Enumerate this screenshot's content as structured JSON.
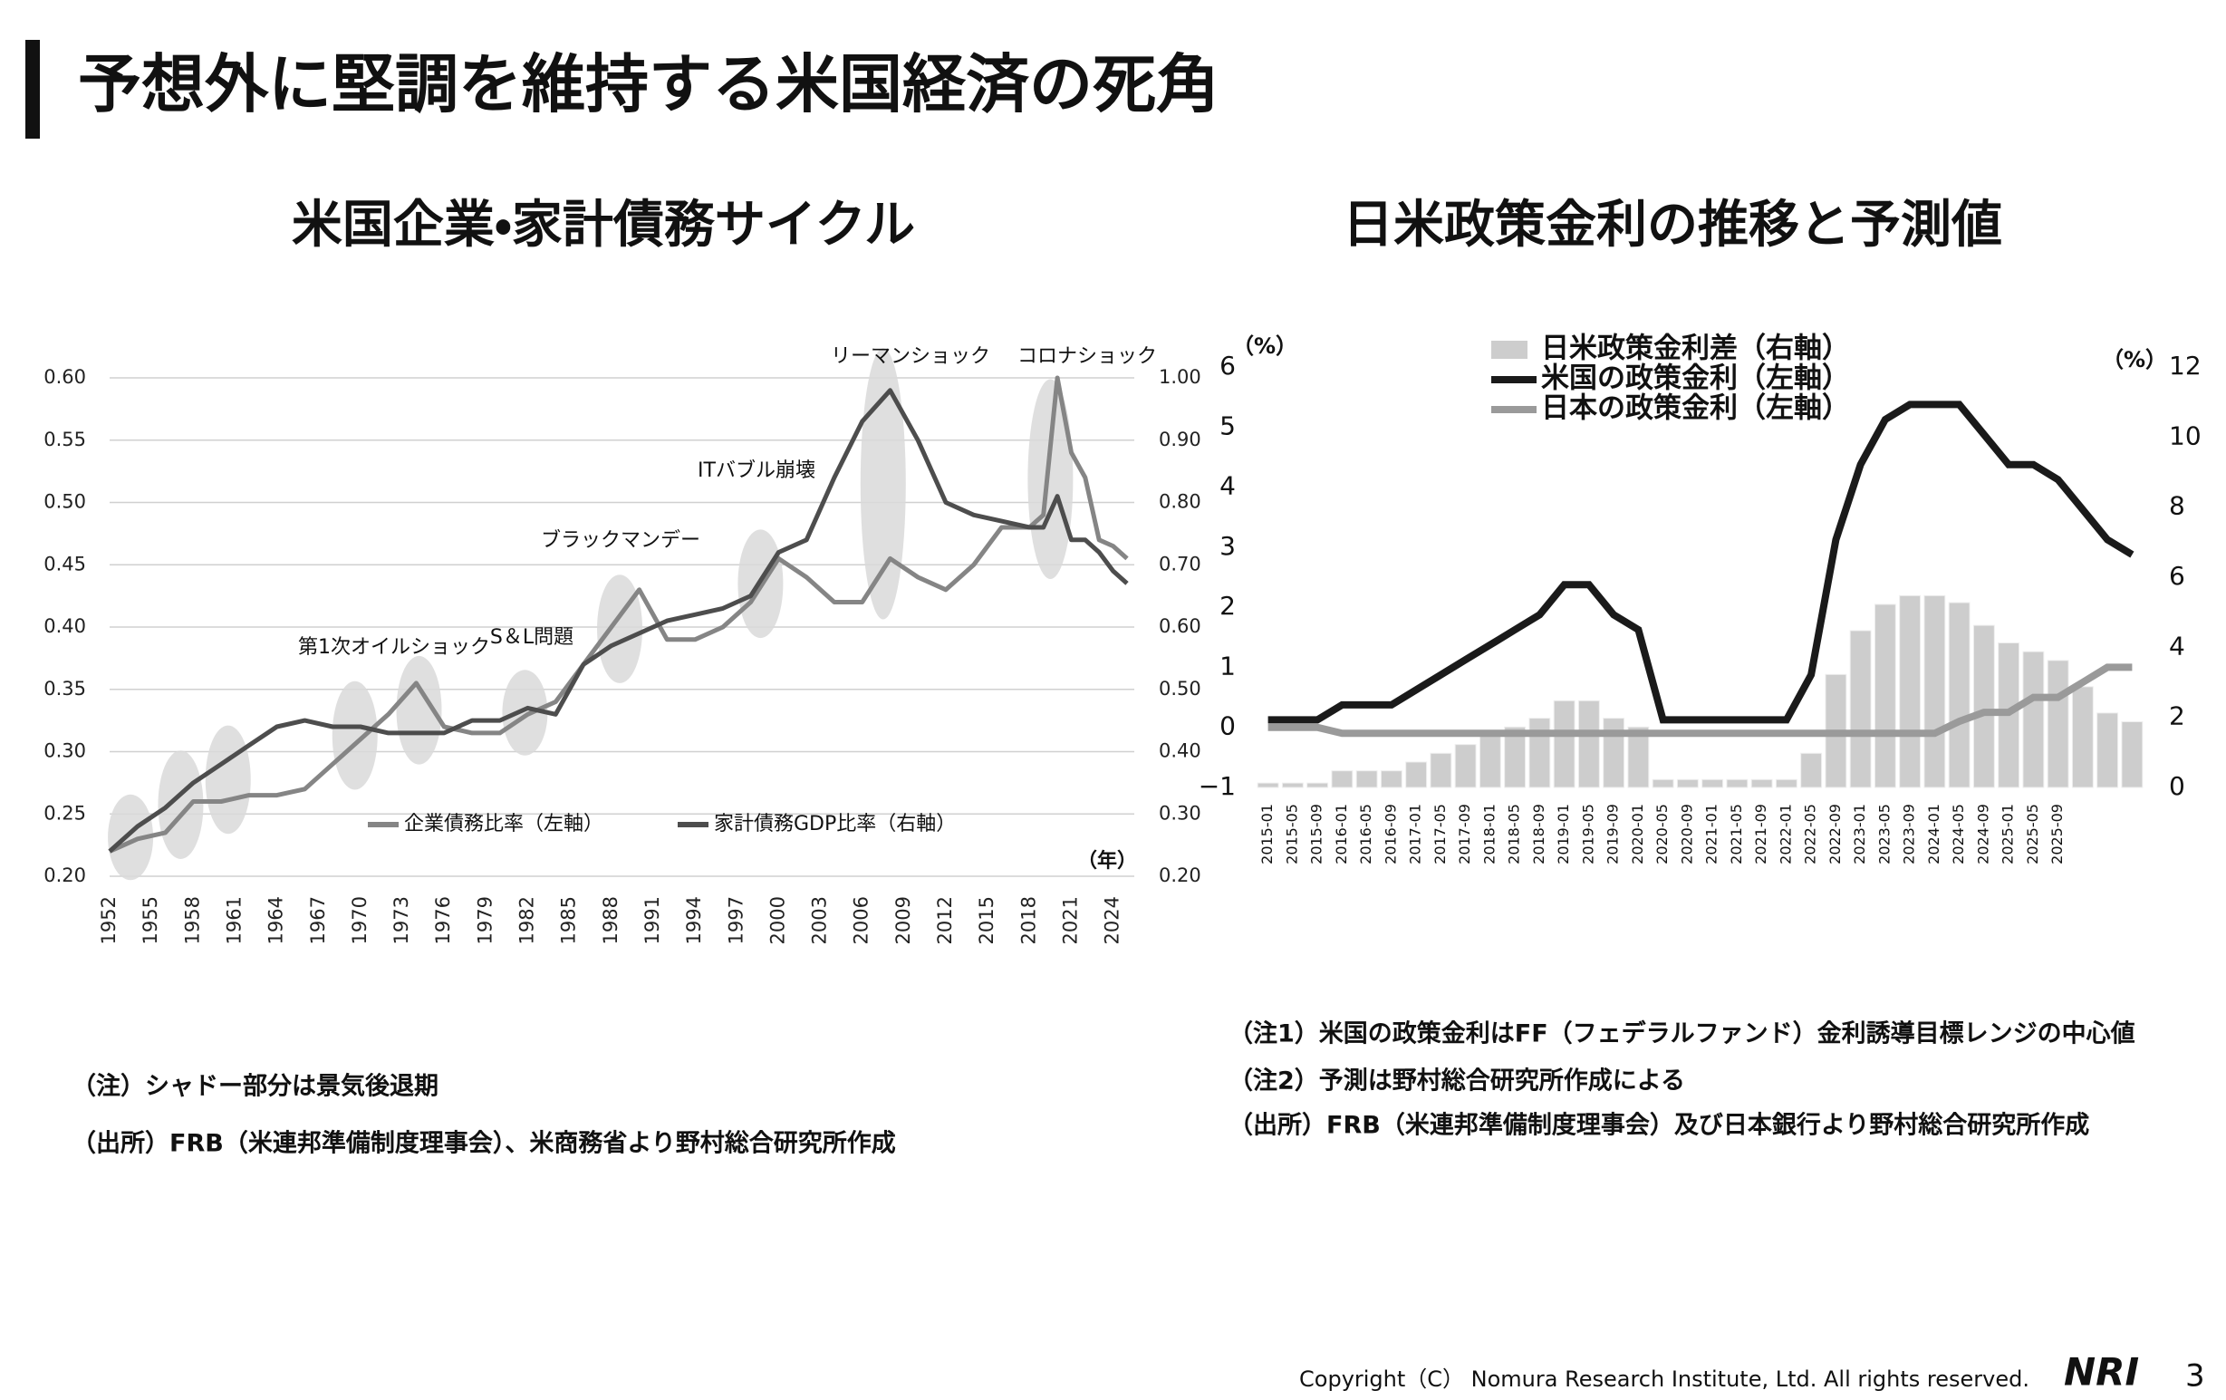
{
  "title": "予想外に堅調を維持する米国経済の死角",
  "chart_data": [
    {
      "type": "line",
      "title": "米国企業・家計債務サイクル",
      "x": [
        1952,
        1954,
        1956,
        1958,
        1960,
        1962,
        1964,
        1966,
        1968,
        1970,
        1972,
        1974,
        1976,
        1978,
        1980,
        1982,
        1984,
        1986,
        1988,
        1990,
        1992,
        1994,
        1996,
        1998,
        2000,
        2002,
        2004,
        2006,
        2008,
        2010,
        2012,
        2014,
        2016,
        2018,
        2019,
        2020,
        2021,
        2022,
        2023,
        2024,
        2025
      ],
      "series": [
        {
          "name": "企業債務比率（左軸）",
          "color": "#858585",
          "values": [
            0.22,
            0.23,
            0.235,
            0.26,
            0.26,
            0.265,
            0.265,
            0.27,
            0.29,
            0.31,
            0.33,
            0.355,
            0.32,
            0.315,
            0.315,
            0.33,
            0.34,
            0.37,
            0.4,
            0.43,
            0.39,
            0.39,
            0.4,
            0.42,
            0.455,
            0.44,
            0.42,
            0.42,
            0.455,
            0.44,
            0.43,
            0.45,
            0.48,
            0.48,
            0.49,
            0.6,
            0.54,
            0.52,
            0.47,
            0.465,
            0.455
          ]
        },
        {
          "name": "家計債務GDP比率（右軸）",
          "color": "#4d4d4d",
          "axis": "y2",
          "values": [
            0.24,
            0.28,
            0.31,
            0.35,
            0.38,
            0.41,
            0.44,
            0.45,
            0.44,
            0.44,
            0.43,
            0.43,
            0.43,
            0.45,
            0.45,
            0.47,
            0.46,
            0.54,
            0.57,
            0.59,
            0.61,
            0.62,
            0.63,
            0.65,
            0.72,
            0.74,
            0.84,
            0.93,
            0.98,
            0.9,
            0.8,
            0.78,
            0.77,
            0.76,
            0.76,
            0.81,
            0.74,
            0.74,
            0.72,
            0.69,
            0.67
          ]
        }
      ],
      "xlim": [
        1952,
        2025
      ],
      "xticks": [
        1952,
        1955,
        1958,
        1961,
        1964,
        1967,
        1970,
        1973,
        1976,
        1979,
        1982,
        1985,
        1988,
        1991,
        1994,
        1997,
        2000,
        2003,
        2006,
        2009,
        2012,
        2015,
        2018,
        2021,
        2024
      ],
      "x_unit": "（年）",
      "ylim": [
        0.2,
        0.6
      ],
      "yticks": [
        {
          "value": 0.2,
          "label": "0.20"
        },
        {
          "value": 0.25,
          "label": "0.25"
        },
        {
          "value": 0.3,
          "label": "0.30"
        },
        {
          "value": 0.35,
          "label": "0.35"
        },
        {
          "value": 0.4,
          "label": "0.40"
        },
        {
          "value": 0.45,
          "label": "0.45"
        },
        {
          "value": 0.5,
          "label": "0.50"
        },
        {
          "value": 0.55,
          "label": "0.55"
        },
        {
          "value": 0.6,
          "label": "0.60"
        }
      ],
      "y2lim": [
        0.2,
        1.0
      ],
      "y2ticks": [
        {
          "value": 0.2,
          "label": "0.20"
        },
        {
          "value": 0.3,
          "label": "0.30"
        },
        {
          "value": 0.4,
          "label": "0.40"
        },
        {
          "value": 0.5,
          "label": "0.50"
        },
        {
          "value": 0.6,
          "label": "0.60"
        },
        {
          "value": 0.7,
          "label": "0.70"
        },
        {
          "value": 0.8,
          "label": "0.80"
        },
        {
          "value": 0.9,
          "label": "0.90"
        },
        {
          "value": 1.0,
          "label": "1.00"
        }
      ],
      "grid": true,
      "shaded_periods": [
        1953.5,
        1957.1,
        1960.5,
        1969.6,
        1974.2,
        1981.8,
        1988.6,
        1998.7,
        2007.5,
        2019.5
      ],
      "annotations": [
        "リーマンショック",
        "コロナショック",
        "ITバブル崩壊",
        "ブラックマンデー",
        "第1次オイルショック",
        "S＆L問題"
      ]
    },
    {
      "type": "combo",
      "title": "日米政策金利の推移と予測値",
      "categories": [
        "2015-01",
        "2015-05",
        "2015-09",
        "2016-01",
        "2016-05",
        "2016-09",
        "2017-01",
        "2017-05",
        "2017-09",
        "2018-01",
        "2018-05",
        "2018-09",
        "2019-01",
        "2019-05",
        "2019-09",
        "2020-01",
        "2020-05",
        "2020-09",
        "2021-01",
        "2021-05",
        "2021-09",
        "2022-01",
        "2022-05",
        "2022-09",
        "2023-01",
        "2023-05",
        "2023-09",
        "2024-01",
        "2024-05",
        "2024-09",
        "2025-01",
        "2025-05",
        "2025-09",
        null,
        null,
        null
      ],
      "series": [
        {
          "name": "日米政策金利差（右軸）",
          "color": "#cdcdcd",
          "type": "bar",
          "axis": "y2",
          "values": [
            0.125,
            0.125,
            0.125,
            0.475,
            0.475,
            0.475,
            0.725,
            0.975,
            1.225,
            1.475,
            1.725,
            1.975,
            2.475,
            2.475,
            1.975,
            1.725,
            0.225,
            0.225,
            0.225,
            0.225,
            0.225,
            0.225,
            0.975,
            3.225,
            4.475,
            5.225,
            5.475,
            5.475,
            5.275,
            4.625,
            4.125,
            3.875,
            3.625,
            2.875,
            2.125,
            1.875
          ]
        },
        {
          "name": "米国の政策金利（左軸）",
          "color": "#1a1a1a",
          "values": [
            0.125,
            0.125,
            0.125,
            0.375,
            0.375,
            0.375,
            0.625,
            0.875,
            1.125,
            1.375,
            1.625,
            1.875,
            2.375,
            2.375,
            1.875,
            1.625,
            0.125,
            0.125,
            0.125,
            0.125,
            0.125,
            0.125,
            0.875,
            3.125,
            4.375,
            5.125,
            5.375,
            5.375,
            5.375,
            4.875,
            4.375,
            4.375,
            4.125,
            3.625,
            3.125,
            2.875
          ]
        },
        {
          "name": "日本の政策金利（左軸）",
          "color": "#9a9a9a",
          "values": [
            0,
            0,
            0,
            -0.1,
            -0.1,
            -0.1,
            -0.1,
            -0.1,
            -0.1,
            -0.1,
            -0.1,
            -0.1,
            -0.1,
            -0.1,
            -0.1,
            -0.1,
            -0.1,
            -0.1,
            -0.1,
            -0.1,
            -0.1,
            -0.1,
            -0.1,
            -0.1,
            -0.1,
            -0.1,
            -0.1,
            -0.1,
            0.1,
            0.25,
            0.25,
            0.5,
            0.5,
            0.75,
            1,
            1
          ]
        }
      ],
      "ylim": [
        -1,
        6
      ],
      "yticks": [
        {
          "value": -1,
          "label": "−1"
        },
        0,
        1,
        2,
        3,
        4,
        5,
        6
      ],
      "y_unit": "（%）",
      "y2lim": [
        0,
        12
      ],
      "y2ticks": [
        0,
        2,
        4,
        6,
        8,
        10,
        12
      ],
      "y2_unit": "（%）"
    }
  ],
  "notes_left": [
    "（注）シャドー部分は景気後退期",
    "（出所）FRB（米連邦準備制度理事会）、米商務省より野村総合研究所作成"
  ],
  "notes_right": [
    "（注1）米国の政策金利はFF（フェデラルファンド）金利誘導目標レンジの中心値",
    "（注2）予測は野村総合研究所作成による",
    "（出所）FRB（米連邦準備制度理事会）及び日本銀行より野村総合研究所作成"
  ],
  "copyright": "Copyright（C） Nomura Research Institute, Ltd. All rights reserved.",
  "logo": "NRI",
  "page_number": "3"
}
